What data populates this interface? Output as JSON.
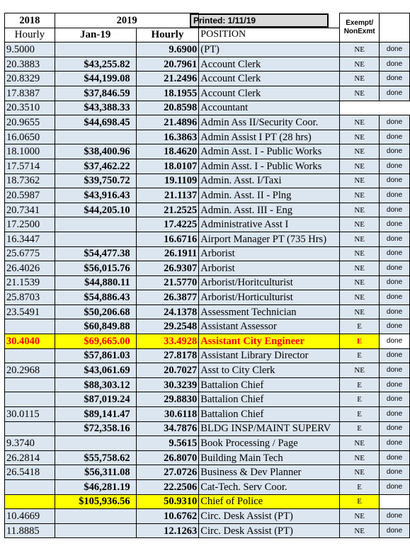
{
  "printed_label": "Printed: 1/11/19",
  "headers": {
    "year_2018": "2018",
    "year_2019": "2019",
    "hourly_2018": "Hourly",
    "jan_19": "Jan-19",
    "hourly_2019": "Hourly",
    "position": "POSITION",
    "exempt": "Exempt/",
    "nonexmt": "NonExmt"
  },
  "colors": {
    "shade": "#dce6f1",
    "highlight_yellow": "#ffff00",
    "highlight_red_text": "#ff0000"
  },
  "rows": [
    {
      "h2018": "9.5000",
      "jan19": "",
      "h2019": "9.6900",
      "position": "(PT)",
      "exempt": "NE",
      "status": "done",
      "style": "shade"
    },
    {
      "h2018": "20.3883",
      "jan19": "$43,255.82",
      "h2019": "20.7961",
      "position": "Account Clerk",
      "exempt": "NE",
      "status": "done",
      "style": "shade"
    },
    {
      "h2018": "20.8329",
      "jan19": "$44,199.08",
      "h2019": "21.2496",
      "position": "Account Clerk",
      "exempt": "NE",
      "status": "done",
      "style": "shade"
    },
    {
      "h2018": "17.8387",
      "jan19": "$37,846.59",
      "h2019": "18.1955",
      "position": "Account Clerk",
      "exempt": "NE",
      "status": "done",
      "style": "shade"
    },
    {
      "h2018": "20.3510",
      "jan19": "$43,388.33",
      "h2019": "20.8598",
      "position": "Accountant",
      "exempt": "",
      "status": "",
      "style": "shade"
    },
    {
      "h2018": "20.9655",
      "jan19": "$44,698.45",
      "h2019": "21.4896",
      "position": "Admin Ass II/Security Coor.",
      "exempt": "NE",
      "status": "done",
      "style": "shade"
    },
    {
      "h2018": "16.0650",
      "jan19": "",
      "h2019": "16.3863",
      "position": "Admin Assist I PT (28 hrs)",
      "exempt": "NE",
      "status": "done",
      "style": "shade"
    },
    {
      "h2018": "18.1000",
      "jan19": "$38,400.96",
      "h2019": "18.4620",
      "position": "Admin Asst. I - Public Works",
      "exempt": "NE",
      "status": "done",
      "style": "shade"
    },
    {
      "h2018": "17.5714",
      "jan19": "$37,462.22",
      "h2019": "18.0107",
      "position": "Admin Asst. I - Public Works",
      "exempt": "NE",
      "status": "done",
      "style": "shade"
    },
    {
      "h2018": "18.7362",
      "jan19": "$39,750.72",
      "h2019": "19.1109",
      "position": "Admin. Asst. I/Taxi",
      "exempt": "NE",
      "status": "done",
      "style": "shade"
    },
    {
      "h2018": "20.5987",
      "jan19": "$43,916.43",
      "h2019": "21.1137",
      "position": "Admin. Asst. II - Plng",
      "exempt": "NE",
      "status": "done",
      "style": "shade"
    },
    {
      "h2018": "20.7341",
      "jan19": "$44,205.10",
      "h2019": "21.2525",
      "position": "Admin. Asst. III - Eng",
      "exempt": "NE",
      "status": "done",
      "style": "shade"
    },
    {
      "h2018": "17.2500",
      "jan19": "",
      "h2019": "17.4225",
      "position": "Administrative Asst I",
      "exempt": "NE",
      "status": "done",
      "style": "shade"
    },
    {
      "h2018": "16.3447",
      "jan19": "",
      "h2019": "16.6716",
      "position": "Airport Manager PT (735 Hrs)",
      "exempt": "NE",
      "status": "done",
      "style": "shade"
    },
    {
      "h2018": "25.6775",
      "jan19": "$54,477.38",
      "h2019": "26.1911",
      "position": "Arborist",
      "exempt": "NE",
      "status": "done",
      "style": "shade"
    },
    {
      "h2018": "26.4026",
      "jan19": "$56,015.76",
      "h2019": "26.9307",
      "position": "Arborist",
      "exempt": "NE",
      "status": "done",
      "style": "shade"
    },
    {
      "h2018": "21.1539",
      "jan19": "$44,880.11",
      "h2019": "21.5770",
      "position": "Arborist/Horitculturist",
      "exempt": "NE",
      "status": "done",
      "style": "shade"
    },
    {
      "h2018": "25.8703",
      "jan19": "$54,886.43",
      "h2019": "26.3877",
      "position": "Arborist/Horticulturist",
      "exempt": "NE",
      "status": "done",
      "style": "shade"
    },
    {
      "h2018": "23.5491",
      "jan19": "$50,206.68",
      "h2019": "24.1378",
      "position": "Assessment Technician",
      "exempt": "NE",
      "status": "done",
      "style": "shade"
    },
    {
      "h2018": "",
      "jan19": "$60,849.88",
      "h2019": "29.2548",
      "position": "Assistant Assessor",
      "exempt": "E",
      "status": "done",
      "style": "shade"
    },
    {
      "h2018": "30.4040",
      "jan19": "$69,665.00",
      "h2019": "33.4928",
      "position": "Assistant City Engineer",
      "exempt": "E",
      "status": "done",
      "style": "red"
    },
    {
      "h2018": "",
      "jan19": "$57,861.03",
      "h2019": "27.8178",
      "position": "Assistant Library Director",
      "exempt": "E",
      "status": "done",
      "style": "shade"
    },
    {
      "h2018": "20.2968",
      "jan19": "$43,061.69",
      "h2019": "20.7027",
      "position": "Asst to City Clerk",
      "exempt": "NE",
      "status": "done",
      "style": "shade"
    },
    {
      "h2018": "",
      "jan19": "$88,303.12",
      "h2019": "30.3239",
      "position": "Battalion Chief",
      "exempt": "E",
      "status": "done",
      "style": "shade"
    },
    {
      "h2018": "",
      "jan19": "$87,019.24",
      "h2019": "29.8830",
      "position": "Battalion Chief",
      "exempt": "E",
      "status": "done",
      "style": "shade"
    },
    {
      "h2018": "30.0115",
      "jan19": "$89,141.47",
      "h2019": "30.6118",
      "position": "Battalion Chief",
      "exempt": "E",
      "status": "done",
      "style": "shade"
    },
    {
      "h2018": "",
      "jan19": "$72,358.16",
      "h2019": "34.7876",
      "position": "BLDG INSP/MAINT SUPERV",
      "exempt": "E",
      "status": "done",
      "style": "shade"
    },
    {
      "h2018": "9.3740",
      "jan19": "",
      "h2019": "9.5615",
      "position": "Book Processing / Page",
      "exempt": "NE",
      "status": "done",
      "style": "shade"
    },
    {
      "h2018": "26.2814",
      "jan19": "$55,758.62",
      "h2019": "26.8070",
      "position": "Building Main Tech",
      "exempt": "NE",
      "status": "done",
      "style": "shade"
    },
    {
      "h2018": "26.5418",
      "jan19": "$56,311.08",
      "h2019": "27.0726",
      "position": "Business & Dev Planner",
      "exempt": "NE",
      "status": "done",
      "style": "shade"
    },
    {
      "h2018": "",
      "jan19": "$46,281.19",
      "h2019": "22.2506",
      "position": "Cat-Tech. Serv Coor.",
      "exempt": "E",
      "status": "done",
      "style": "shade"
    },
    {
      "h2018": "",
      "jan19": "$105,936.56",
      "h2019": "50.9310",
      "position": "Chief of Police",
      "exempt": "E",
      "status": "",
      "style": "yellow"
    },
    {
      "h2018": "10.4669",
      "jan19": "",
      "h2019": "10.6762",
      "position": "Circ. Desk Assist (PT)",
      "exempt": "NE",
      "status": "done",
      "style": "shade"
    },
    {
      "h2018": "11.8885",
      "jan19": "",
      "h2019": "12.1263",
      "position": "Circ. Desk Assist (PT)",
      "exempt": "NE",
      "status": "done",
      "style": "shade"
    }
  ]
}
